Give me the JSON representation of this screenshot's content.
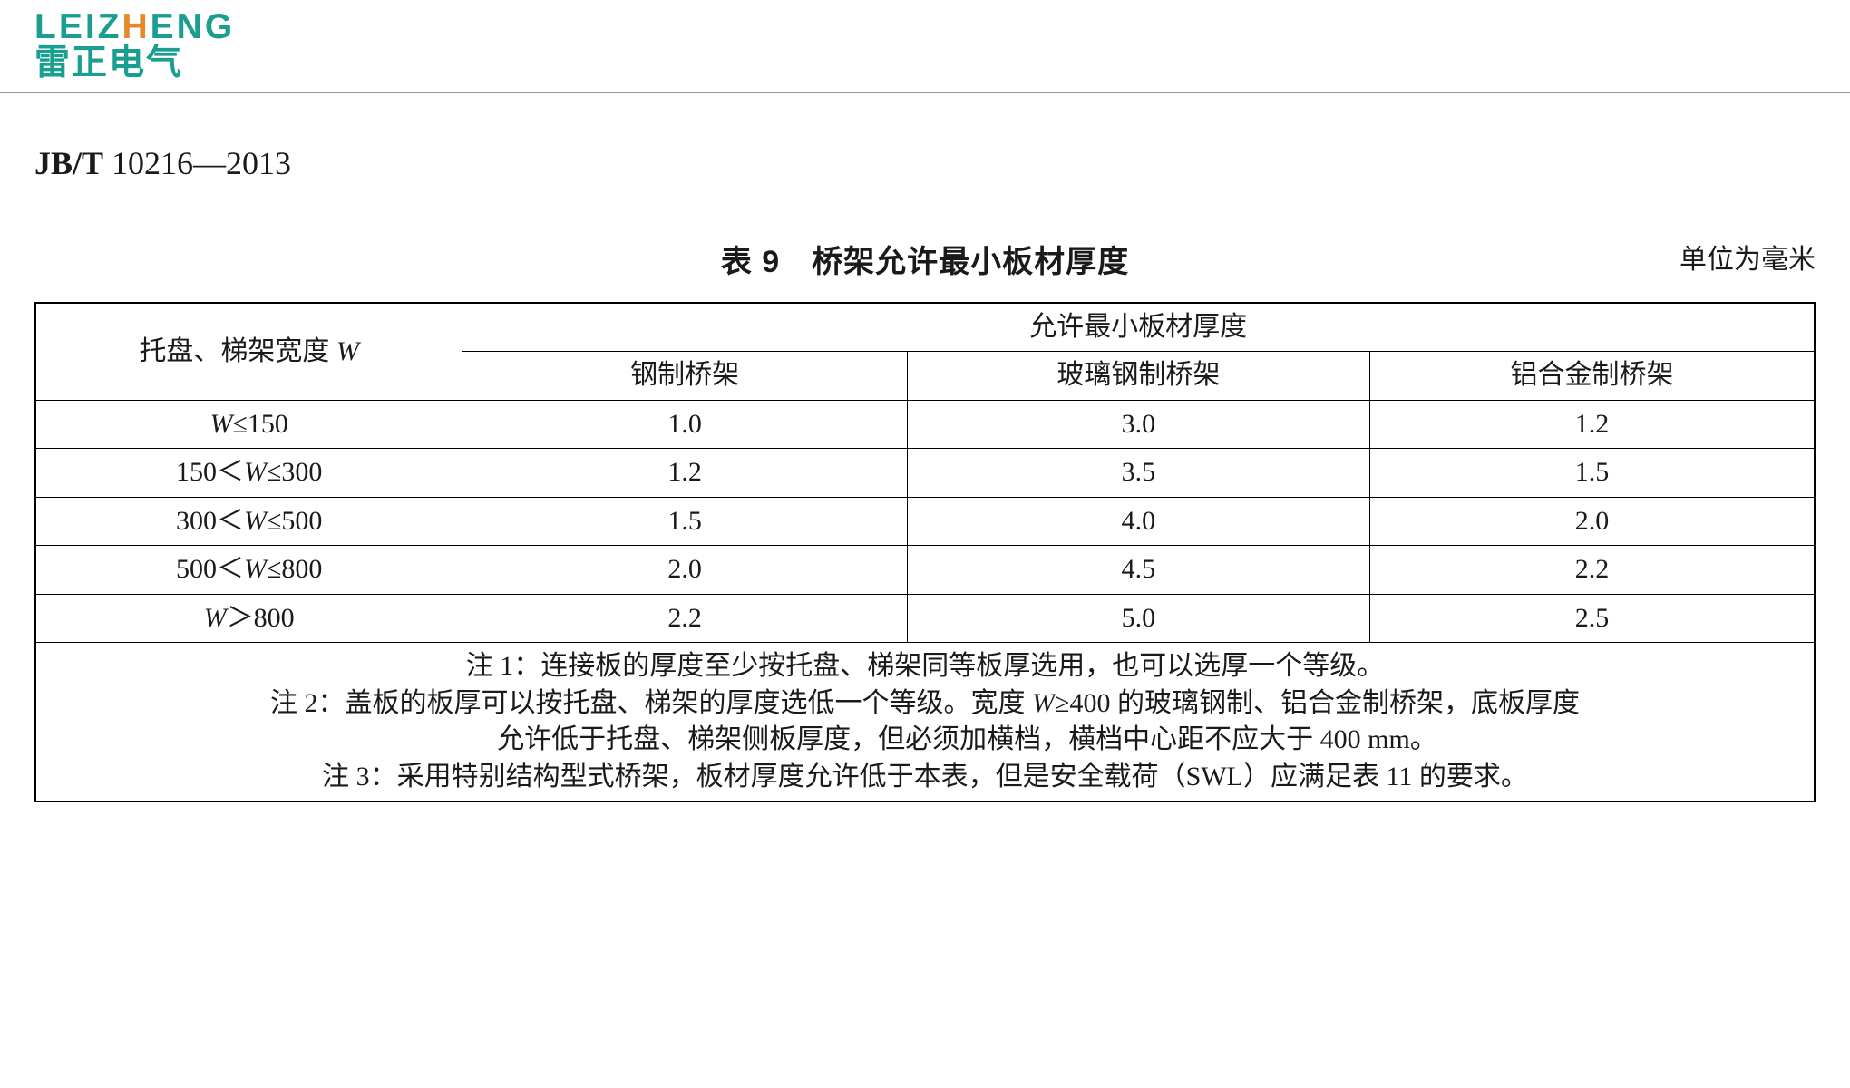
{
  "logo": {
    "latin_pre": "LEIZ",
    "latin_accent": "H",
    "latin_post": "ENG",
    "cjk": "雷正电气",
    "colors": {
      "primary": "#1a9e8f",
      "accent": "#e58a2a"
    }
  },
  "standard": {
    "prefix_bold": "JB/T",
    "number": "10216—2013"
  },
  "table": {
    "type": "table",
    "title_prefix": "表 9",
    "title_text": "桥架允许最小板材厚度",
    "unit_label": "单位为毫米",
    "colors": {
      "border": "#000000",
      "text": "#1a1a1a",
      "background": "#ffffff"
    },
    "font": {
      "body_pt": 30,
      "title_pt": 34
    },
    "column_widths_pct": [
      24,
      25,
      26,
      25
    ],
    "header": {
      "row_label_pre": "托盘、梯架宽度 ",
      "row_label_var": "W",
      "group_label": "允许最小板材厚度",
      "sub": [
        "钢制桥架",
        "玻璃钢制桥架",
        "铝合金制桥架"
      ]
    },
    "rows": [
      {
        "range_html": "<span class='var-W'>W</span><span class='math'>≤150</span>",
        "v": [
          "1.0",
          "3.0",
          "1.2"
        ]
      },
      {
        "range_html": "<span class='math'>150＜</span><span class='var-W'>W</span><span class='math'>≤300</span>",
        "v": [
          "1.2",
          "3.5",
          "1.5"
        ]
      },
      {
        "range_html": "<span class='math'>300＜</span><span class='var-W'>W</span><span class='math'>≤500</span>",
        "v": [
          "1.5",
          "4.0",
          "2.0"
        ]
      },
      {
        "range_html": "<span class='math'>500＜</span><span class='var-W'>W</span><span class='math'>≤800</span>",
        "v": [
          "2.0",
          "4.5",
          "2.2"
        ]
      },
      {
        "range_html": "<span class='var-W'>W</span><span class='math'>＞800</span>",
        "v": [
          "2.2",
          "5.0",
          "2.5"
        ]
      }
    ],
    "notes": {
      "n1": "注 1：连接板的厚度至少按托盘、梯架同等板厚选用，也可以选厚一个等级。",
      "n2a_pre": "注 2：盖板的板厚可以按托盘、梯架的厚度选低一个等级。宽度 ",
      "n2a_var": "W",
      "n2a_post": "≥400 的玻璃钢制、铝合金制桥架，底板厚度",
      "n2b": "允许低于托盘、梯架侧板厚度，但必须加横档，横档中心距不应大于 400 mm。",
      "n3": "注 3：采用特别结构型式桥架，板材厚度允许低于本表，但是安全载荷（SWL）应满足表 11 的要求。"
    }
  }
}
